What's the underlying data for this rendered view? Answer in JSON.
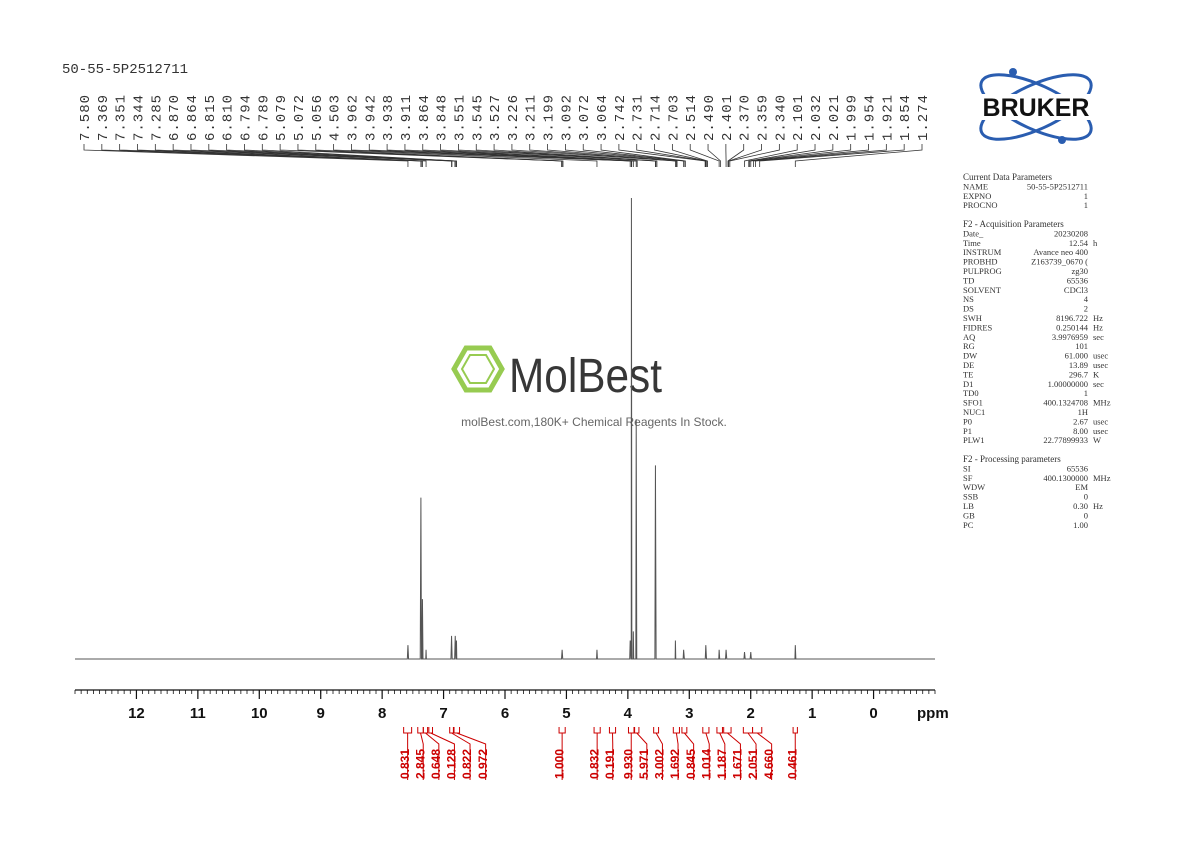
{
  "chart_data": {
    "type": "nmr",
    "title": "50-55-5P2512711",
    "xlabel": "ppm",
    "xlim": [
      13,
      -1
    ],
    "xticks": [
      12,
      11,
      10,
      9,
      8,
      7,
      6,
      5,
      4,
      3,
      2,
      1,
      0
    ],
    "ylim": [
      0,
      100
    ],
    "color": "#555555",
    "spectrum": {
      "x": [
        13,
        7.59,
        7.58,
        7.57,
        7.38,
        7.369,
        7.36,
        7.35,
        7.344,
        7.335,
        7.29,
        7.285,
        7.28,
        6.88,
        6.87,
        6.86,
        6.82,
        6.81,
        6.8,
        6.795,
        6.79,
        6.785,
        5.08,
        5.07,
        5.06,
        4.51,
        4.503,
        4.495,
        3.97,
        3.962,
        3.95,
        3.945,
        3.942,
        3.935,
        3.915,
        3.911,
        3.905,
        3.87,
        3.864,
        3.855,
        3.56,
        3.551,
        3.54,
        3.23,
        3.226,
        3.22,
        3.1,
        3.092,
        3.08,
        2.74,
        2.731,
        2.72,
        2.52,
        2.514,
        2.505,
        2.41,
        2.401,
        2.39,
        2.11,
        2.101,
        2.09,
        2.01,
        1.999,
        1.99,
        1.28,
        1.274,
        1.265,
        -1
      ],
      "values": [
        0,
        0,
        3,
        0,
        0,
        35,
        0,
        0,
        13,
        0,
        0,
        2,
        0,
        0,
        5,
        0,
        0,
        5,
        0,
        0,
        4,
        0,
        0,
        2,
        0,
        0,
        2,
        0,
        0,
        4,
        0,
        0,
        100,
        0,
        0,
        6,
        0,
        0,
        52,
        0,
        0,
        42,
        0,
        0,
        4,
        0,
        0,
        2,
        0,
        0,
        3,
        0,
        0,
        2,
        0,
        0,
        2,
        0,
        0,
        1.5,
        0,
        0,
        1.5,
        0,
        0,
        3,
        0,
        0
      ]
    },
    "peaks": [
      {
        "value": 7.58,
        "label": "7.580"
      },
      7.369,
      7.351,
      7.344,
      7.285,
      {
        "value": 6.87,
        "label": "6.870"
      },
      6.864,
      6.815,
      {
        "value": 6.81,
        "label": "6.810"
      },
      6.794,
      6.789,
      5.079,
      5.072,
      5.056,
      4.503,
      3.962,
      3.942,
      3.938,
      3.911,
      3.864,
      3.848,
      3.551,
      3.545,
      3.527,
      3.226,
      3.211,
      3.199,
      3.092,
      3.072,
      3.064,
      2.742,
      2.731,
      2.714,
      2.703,
      2.514,
      {
        "value": 2.49,
        "label": "2.490"
      },
      2.401,
      {
        "value": 2.37,
        "label": "2.370"
      },
      2.359,
      {
        "value": 2.34,
        "label": "2.340"
      },
      2.101,
      2.032,
      2.021,
      1.999,
      1.954,
      1.921,
      1.854,
      1.274
    ],
    "integrals": {
      "values": [
        0.831,
        2.845,
        0.648,
        0.128,
        0.822,
        0.972,
        1,
        0.832,
        0.191,
        9.93,
        5.971,
        3.002,
        1.692,
        0.845,
        1.014,
        1.187,
        1.671,
        2.051,
        4.66,
        0.461
      ],
      "value_labels": [
        "0.831",
        "2.845",
        "0.648",
        "0.128",
        "0.822",
        "0.972",
        "1.000",
        "0.832",
        "0.191",
        "9.930",
        "5.971",
        "3.002",
        "1.692",
        "0.845",
        "1.014",
        "1.187",
        "1.671",
        "2.051",
        "4.660",
        "0.461"
      ],
      "ranges": [
        [
          7.65,
          7.52
        ],
        [
          7.42,
          7.33
        ],
        [
          7.33,
          7.26
        ],
        [
          7.24,
          7.18
        ],
        [
          6.9,
          6.84
        ],
        [
          6.83,
          6.74
        ],
        [
          5.12,
          5.02
        ],
        [
          4.55,
          4.45
        ],
        [
          4.3,
          4.2
        ],
        [
          3.99,
          3.9
        ],
        [
          3.89,
          3.82
        ],
        [
          3.58,
          3.5
        ],
        [
          3.26,
          3.16
        ],
        [
          3.12,
          3.04
        ],
        [
          2.78,
          2.68
        ],
        [
          2.55,
          2.46
        ],
        [
          2.44,
          2.32
        ],
        [
          2.12,
          1.97
        ],
        [
          1.97,
          1.82
        ],
        [
          1.31,
          1.24
        ]
      ],
      "color": "#cc0000"
    }
  },
  "watermark": {
    "brand": "MolBest",
    "tagline": "molBest.com,180K+ Chemical Reagents In Stock."
  },
  "logo": "BRUKER",
  "parameters": [
    {
      "title": "Current Data Parameters",
      "rows": [
        [
          "NAME",
          "50-55-5P2512711"
        ],
        [
          "EXPNO",
          "1"
        ],
        [
          "PROCNO",
          "1"
        ]
      ]
    },
    {
      "title": "F2 - Acquisition Parameters",
      "rows": [
        [
          "Date_",
          "20230208"
        ],
        [
          "Time",
          "12.54",
          "h"
        ],
        [
          "INSTRUM",
          "Avance neo 400"
        ],
        [
          "PROBHD",
          "Z163739_0670 ("
        ],
        [
          "PULPROG",
          "zg30"
        ],
        [
          "TD",
          "65536"
        ],
        [
          "SOLVENT",
          "CDCl3"
        ],
        [
          "NS",
          "4"
        ],
        [
          "DS",
          "2"
        ],
        [
          "SWH",
          "8196.722",
          "Hz"
        ],
        [
          "FIDRES",
          "0.250144",
          "Hz"
        ],
        [
          "AQ",
          "3.9976959",
          "sec"
        ],
        [
          "RG",
          "101"
        ],
        [
          "DW",
          "61.000",
          "usec"
        ],
        [
          "DE",
          "13.89",
          "usec"
        ],
        [
          "TE",
          "296.7",
          "K"
        ],
        [
          "D1",
          "1.00000000",
          "sec"
        ],
        [
          "TD0",
          "1"
        ],
        [
          "SFO1",
          "400.1324708",
          "MHz"
        ],
        [
          "NUC1",
          "1H"
        ],
        [
          "P0",
          "2.67",
          "usec"
        ],
        [
          "P1",
          "8.00",
          "usec"
        ],
        [
          "PLW1",
          "22.77899933",
          "W"
        ]
      ]
    },
    {
      "title": "F2 - Processing parameters",
      "rows": [
        [
          "SI",
          "65536"
        ],
        [
          "SF",
          "400.1300000",
          "MHz"
        ],
        [
          "WDW",
          "EM"
        ],
        [
          "SSB",
          "0"
        ],
        [
          "LB",
          "0.30",
          "Hz"
        ],
        [
          "GB",
          "0"
        ],
        [
          "PC",
          "1.00"
        ]
      ]
    }
  ]
}
